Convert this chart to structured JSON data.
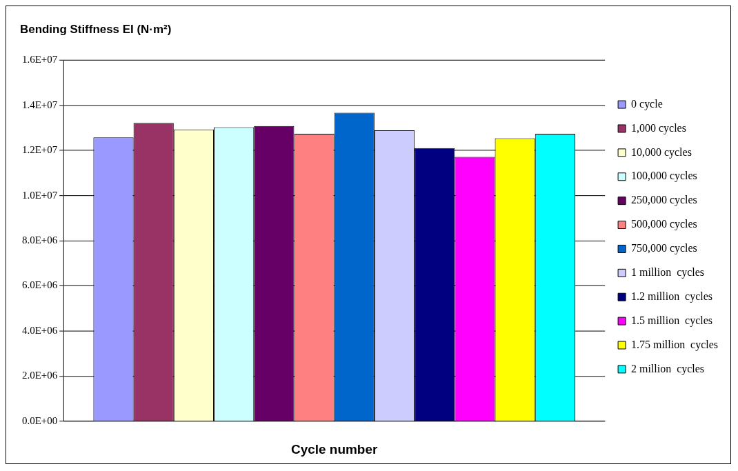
{
  "chart_data": {
    "type": "bar",
    "title": "Bending Stiffness EI (N·m²)",
    "xlabel": "Cycle number",
    "categories": [
      null
    ],
    "series": [
      {
        "name": "0 cycle",
        "color": "#9999ff",
        "values": [
          12580000
        ]
      },
      {
        "name": "1,000 cycles",
        "color": "#993366",
        "values": [
          13220000
        ]
      },
      {
        "name": "10,000 cycles",
        "color": "#ffffcc",
        "values": [
          12930000
        ]
      },
      {
        "name": "100,000 cycles",
        "color": "#ccffff",
        "values": [
          13030000
        ]
      },
      {
        "name": "250,000 cycles",
        "color": "#660066",
        "values": [
          13080000
        ]
      },
      {
        "name": "500,000 cycles",
        "color": "#ff8080",
        "values": [
          12740000
        ]
      },
      {
        "name": "750,000 cycles",
        "color": "#0066cc",
        "values": [
          13670000
        ]
      },
      {
        "name": "1 million  cycles",
        "color": "#ccccff",
        "values": [
          12890000
        ]
      },
      {
        "name": "1.2 million  cycles",
        "color": "#000080",
        "values": [
          12100000
        ]
      },
      {
        "name": "1.5 million  cycles",
        "color": "#ff00ff",
        "values": [
          11710000
        ]
      },
      {
        "name": "1.75 million  cycles",
        "color": "#ffff00",
        "values": [
          12540000
        ]
      },
      {
        "name": "2 million  cycles",
        "color": "#00ffff",
        "values": [
          12740000
        ]
      }
    ],
    "ylim": [
      0,
      16000000
    ],
    "yticks": [
      {
        "value": 0,
        "label": "0.0E+00"
      },
      {
        "value": 2000000,
        "label": "2.0E+06"
      },
      {
        "value": 4000000,
        "label": "4.0E+06"
      },
      {
        "value": 6000000,
        "label": "6.0E+06"
      },
      {
        "value": 8000000,
        "label": "8.0E+06"
      },
      {
        "value": 10000000,
        "label": "1.0E+07"
      },
      {
        "value": 12000000,
        "label": "1.2E+07"
      },
      {
        "value": 14000000,
        "label": "1.4E+07"
      },
      {
        "value": 16000000,
        "label": "1.6E+07"
      }
    ],
    "grid": "y",
    "legend": "right"
  }
}
